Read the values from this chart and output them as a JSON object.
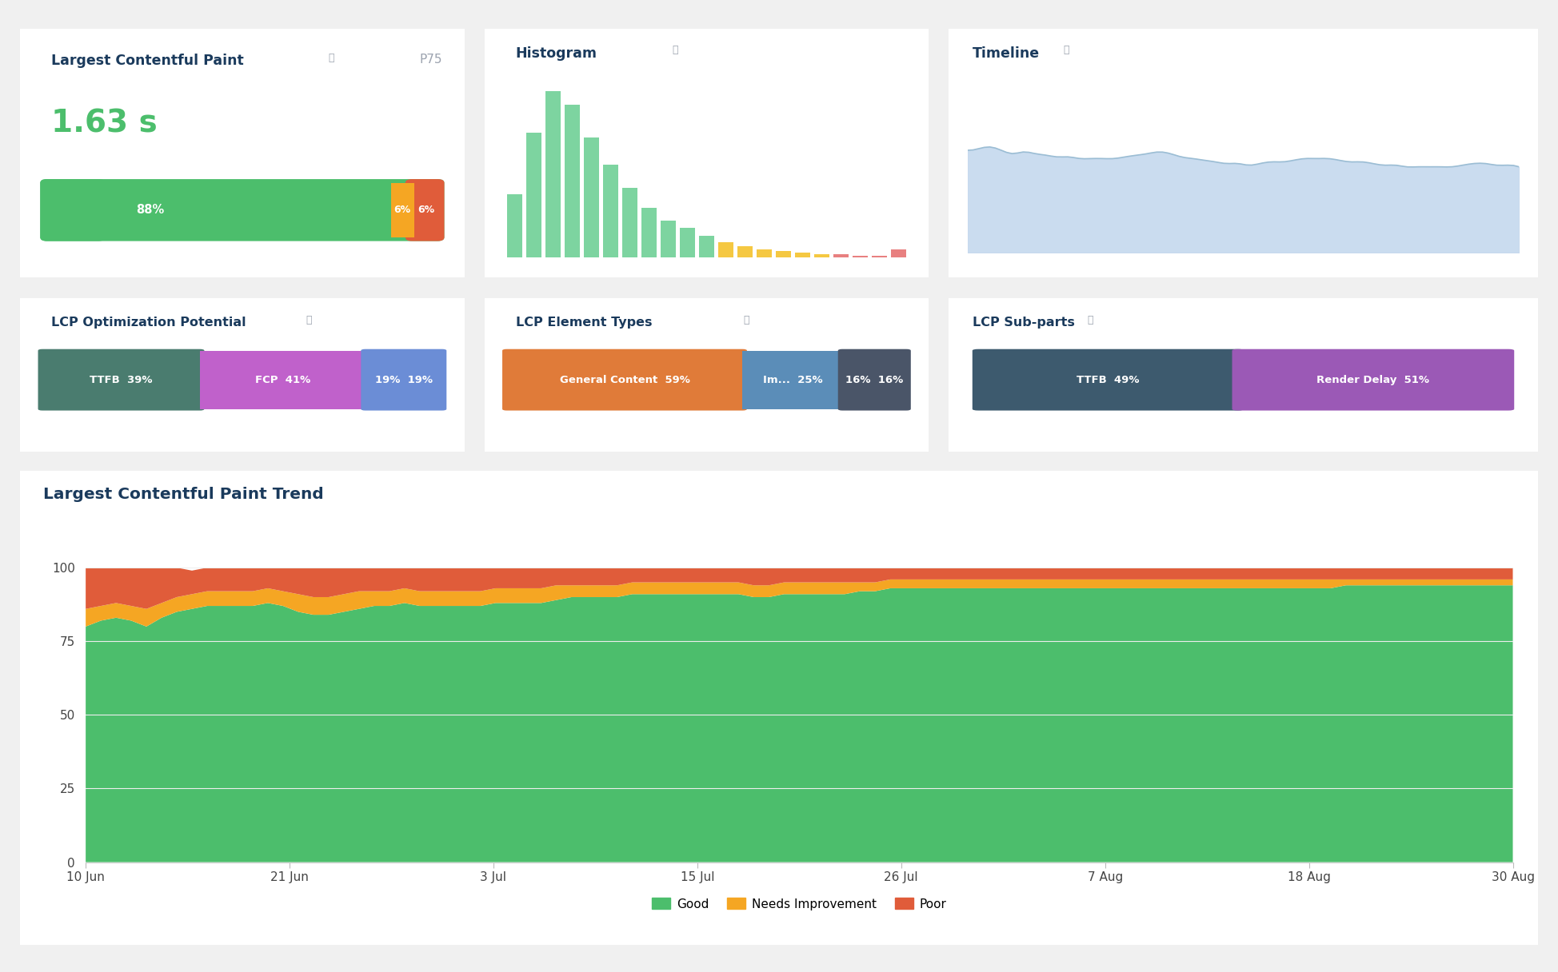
{
  "bg_color": "#f0f0f0",
  "card_color": "#ffffff",
  "title_color": "#1a3a5c",
  "green_color": "#4cbe6c",
  "orange_color": "#f5a623",
  "red_color": "#e05c3a",
  "blue_light_color": "#a8c8e8",
  "gray_color": "#9ca3af",
  "dark_gray": "#555555",
  "lcp_title": "Largest Contentful Paint",
  "lcp_p75": "P75",
  "lcp_value": "1.63 s",
  "lcp_good_pct": 88,
  "lcp_needs_pct": 6,
  "lcp_poor_pct": 6,
  "histogram_title": "Histogram",
  "histogram_bars": [
    38,
    75,
    100,
    92,
    72,
    56,
    42,
    30,
    22,
    18,
    13,
    9,
    7,
    5,
    4,
    3,
    2,
    2,
    1,
    1,
    5
  ],
  "histogram_colors": [
    "#7dd4a0",
    "#7dd4a0",
    "#7dd4a0",
    "#7dd4a0",
    "#7dd4a0",
    "#7dd4a0",
    "#7dd4a0",
    "#7dd4a0",
    "#7dd4a0",
    "#7dd4a0",
    "#7dd4a0",
    "#f5c842",
    "#f5c842",
    "#f5c842",
    "#f5c842",
    "#f5c842",
    "#f5c842",
    "#e88080",
    "#e88080",
    "#e88080",
    "#e88080"
  ],
  "timeline_title": "Timeline",
  "opt_title": "LCP Optimization Potential",
  "opt_question": true,
  "opt_segments": [
    {
      "label": "TTFB",
      "pct": "39%",
      "pct_val": 39,
      "color": "#4a7c6f",
      "text_color": "#ffffff"
    },
    {
      "label": "FCP",
      "pct": "41%",
      "pct_val": 41,
      "color": "#c061cb",
      "text_color": "#ffffff"
    },
    {
      "label": "19%",
      "pct": "19%",
      "pct_val": 19,
      "color": "#6b8dd6",
      "text_color": "#ffffff"
    }
  ],
  "elem_title": "LCP Element Types",
  "elem_segments": [
    {
      "label": "General Content",
      "pct": "59%",
      "pct_val": 59,
      "color": "#e07b39",
      "text_color": "#ffffff"
    },
    {
      "label": "Im...",
      "pct": "25%",
      "pct_val": 25,
      "color": "#5b8db8",
      "text_color": "#ffffff"
    },
    {
      "label": "16%",
      "pct": "16%",
      "pct_val": 16,
      "color": "#4a5568",
      "text_color": "#ffffff"
    }
  ],
  "sub_title": "LCP Sub-parts",
  "sub_segments": [
    {
      "label": "TTFB",
      "pct": "49%",
      "pct_val": 49,
      "color": "#3d5a6e",
      "text_color": "#ffffff"
    },
    {
      "label": "Render Delay",
      "pct": "51%",
      "pct_val": 51,
      "color": "#9b59b6",
      "text_color": "#ffffff"
    }
  ],
  "trend_title": "Largest Contentful Paint Trend",
  "trend_x_labels": [
    "10 Jun",
    "21 Jun",
    "3 Jul",
    "15 Jul",
    "26 Jul",
    "7 Aug",
    "18 Aug",
    "30 Aug"
  ],
  "trend_y_ticks": [
    0,
    25,
    50,
    75,
    100
  ],
  "trend_good_color": "#4cbe6c",
  "trend_needs_color": "#f5a623",
  "trend_poor_color": "#e05c3a",
  "trend_good": [
    80,
    82,
    83,
    82,
    80,
    83,
    85,
    86,
    87,
    87,
    87,
    87,
    88,
    87,
    85,
    84,
    84,
    85,
    86,
    87,
    87,
    88,
    87,
    87,
    87,
    87,
    87,
    88,
    88,
    88,
    88,
    89,
    90,
    90,
    90,
    90,
    91,
    91,
    91,
    91,
    91,
    91,
    91,
    91,
    90,
    90,
    91,
    91,
    91,
    91,
    91,
    92,
    92,
    93,
    93,
    93,
    93,
    93,
    93,
    93,
    93,
    93,
    93,
    93,
    93,
    93,
    93,
    93,
    93,
    93,
    93,
    93,
    93,
    93,
    93,
    93,
    93,
    93,
    93,
    93,
    93,
    93,
    93,
    94,
    94,
    94,
    94,
    94,
    94,
    94,
    94,
    94,
    94,
    94,
    94
  ],
  "trend_needs": [
    6,
    5,
    5,
    5,
    6,
    5,
    5,
    5,
    5,
    5,
    5,
    5,
    5,
    5,
    6,
    6,
    6,
    6,
    6,
    5,
    5,
    5,
    5,
    5,
    5,
    5,
    5,
    5,
    5,
    5,
    5,
    5,
    4,
    4,
    4,
    4,
    4,
    4,
    4,
    4,
    4,
    4,
    4,
    4,
    4,
    4,
    4,
    4,
    4,
    4,
    4,
    3,
    3,
    3,
    3,
    3,
    3,
    3,
    3,
    3,
    3,
    3,
    3,
    3,
    3,
    3,
    3,
    3,
    3,
    3,
    3,
    3,
    3,
    3,
    3,
    3,
    3,
    3,
    3,
    3,
    3,
    3,
    3,
    2,
    2,
    2,
    2,
    2,
    2,
    2,
    2,
    2,
    2,
    2,
    2
  ],
  "trend_poor": [
    14,
    13,
    12,
    13,
    14,
    12,
    10,
    8,
    8,
    8,
    8,
    8,
    7,
    8,
    9,
    10,
    10,
    9,
    8,
    8,
    8,
    7,
    8,
    8,
    8,
    8,
    8,
    7,
    7,
    7,
    7,
    6,
    6,
    6,
    6,
    6,
    5,
    5,
    5,
    5,
    5,
    5,
    5,
    5,
    6,
    6,
    5,
    5,
    5,
    5,
    5,
    5,
    5,
    4,
    4,
    4,
    4,
    4,
    4,
    4,
    4,
    4,
    4,
    4,
    4,
    4,
    4,
    4,
    4,
    4,
    4,
    4,
    4,
    4,
    4,
    4,
    4,
    4,
    4,
    4,
    4,
    4,
    4,
    4,
    4,
    4,
    4,
    4,
    4,
    4,
    4,
    4,
    4,
    4,
    4
  ]
}
